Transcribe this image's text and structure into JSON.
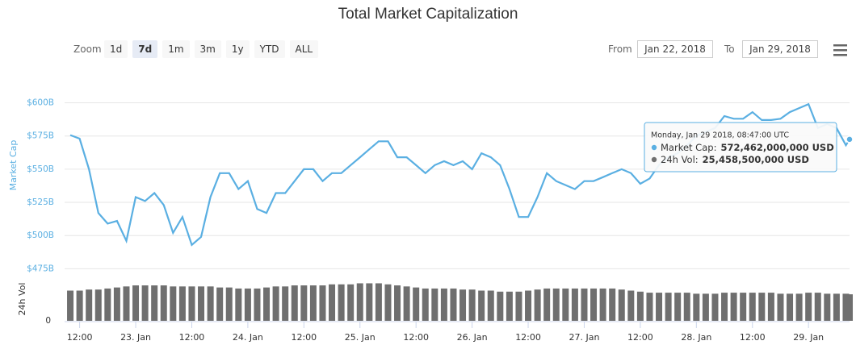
{
  "controls": {
    "zoom_label": "Zoom",
    "zoom_buttons": [
      "1d",
      "7d",
      "1m",
      "3m",
      "1y",
      "YTD",
      "ALL"
    ],
    "selected": "7d",
    "from_label": "From",
    "from_value": "Jan 22, 2018",
    "to_label": "To",
    "to_value": "Jan 29, 2018"
  },
  "chart_data": {
    "type": "line",
    "title": "Total Market Capitalization",
    "y_label": "Market Cap",
    "y2_label": "24h Vol",
    "x": [
      "2018-01-22T10:00",
      "2018-01-22T12:00",
      "2018-01-22T14:00",
      "2018-01-22T16:00",
      "2018-01-22T18:00",
      "2018-01-22T20:00",
      "2018-01-22T22:00",
      "2018-01-23T00:00",
      "2018-01-23T02:00",
      "2018-01-23T04:00",
      "2018-01-23T06:00",
      "2018-01-23T08:00",
      "2018-01-23T10:00",
      "2018-01-23T12:00",
      "2018-01-23T14:00",
      "2018-01-23T16:00",
      "2018-01-23T18:00",
      "2018-01-23T20:00",
      "2018-01-23T22:00",
      "2018-01-24T00:00",
      "2018-01-24T02:00",
      "2018-01-24T04:00",
      "2018-01-24T06:00",
      "2018-01-24T08:00",
      "2018-01-24T10:00",
      "2018-01-24T12:00",
      "2018-01-24T14:00",
      "2018-01-24T16:00",
      "2018-01-24T18:00",
      "2018-01-24T20:00",
      "2018-01-24T22:00",
      "2018-01-25T00:00",
      "2018-01-25T02:00",
      "2018-01-25T04:00",
      "2018-01-25T06:00",
      "2018-01-25T08:00",
      "2018-01-25T10:00",
      "2018-01-25T12:00",
      "2018-01-25T14:00",
      "2018-01-25T16:00",
      "2018-01-25T18:00",
      "2018-01-25T20:00",
      "2018-01-25T22:00",
      "2018-01-26T00:00",
      "2018-01-26T02:00",
      "2018-01-26T04:00",
      "2018-01-26T06:00",
      "2018-01-26T08:00",
      "2018-01-26T10:00",
      "2018-01-26T12:00",
      "2018-01-26T14:00",
      "2018-01-26T16:00",
      "2018-01-26T18:00",
      "2018-01-26T20:00",
      "2018-01-26T22:00",
      "2018-01-27T00:00",
      "2018-01-27T02:00",
      "2018-01-27T04:00",
      "2018-01-27T06:00",
      "2018-01-27T08:00",
      "2018-01-27T10:00",
      "2018-01-27T12:00",
      "2018-01-27T14:00",
      "2018-01-27T16:00",
      "2018-01-27T18:00",
      "2018-01-27T20:00",
      "2018-01-27T22:00",
      "2018-01-28T00:00",
      "2018-01-28T02:00",
      "2018-01-28T04:00",
      "2018-01-28T06:00",
      "2018-01-28T08:00",
      "2018-01-28T10:00",
      "2018-01-28T12:00",
      "2018-01-28T14:00",
      "2018-01-28T16:00",
      "2018-01-28T18:00",
      "2018-01-28T20:00",
      "2018-01-28T22:00",
      "2018-01-29T00:00",
      "2018-01-29T02:00",
      "2018-01-29T04:00",
      "2018-01-29T06:00",
      "2018-01-29T08:00",
      "2018-01-29T08:47"
    ],
    "series": [
      {
        "name": "Market Cap",
        "color": "#5aafe2",
        "values": [
          575.7,
          573,
          550,
          517,
          509,
          511,
          496,
          529,
          526,
          532,
          523,
          502,
          514,
          493,
          499,
          529,
          547,
          547,
          535,
          541,
          520,
          517,
          532,
          532,
          541,
          550,
          550,
          541,
          547,
          547,
          553,
          559,
          565,
          571,
          571,
          559,
          559,
          553,
          547,
          553,
          556,
          553,
          556,
          550,
          562,
          559,
          553,
          535,
          514,
          514,
          529,
          547,
          541,
          538,
          535,
          541,
          541,
          544,
          547,
          550,
          547,
          539,
          543,
          553,
          559,
          562,
          568,
          575,
          578,
          581,
          590,
          588,
          588,
          593,
          587,
          587,
          588,
          593,
          596,
          599,
          581,
          584,
          581,
          568,
          572.462
        ]
      },
      {
        "name": "24h Vol",
        "color": "#6f6f6f",
        "axis": "y2",
        "values": [
          29,
          29,
          30,
          30,
          31,
          32,
          33,
          34,
          34,
          34,
          34,
          33,
          33,
          33,
          33,
          33,
          32,
          32,
          31,
          31,
          31,
          32,
          33,
          33,
          34,
          34,
          34,
          34,
          35,
          35,
          35,
          36,
          36,
          36,
          35,
          34,
          33,
          32,
          31,
          31,
          31,
          31,
          30,
          30,
          29,
          29,
          28,
          28,
          28,
          29,
          30,
          31,
          31,
          31,
          31,
          31,
          31,
          31,
          31,
          30,
          29,
          28,
          27,
          27,
          27,
          27,
          27,
          26,
          26,
          26,
          27,
          27,
          27,
          27,
          27,
          27,
          26,
          26,
          26,
          27,
          27,
          26,
          26,
          26,
          25.4585
        ]
      }
    ],
    "xlim": [
      "2018-01-22T08:47",
      "2018-01-29T08:47"
    ],
    "xticks": [
      {
        "value": "2018-01-22T12:00",
        "label": "12:00"
      },
      {
        "value": "2018-01-23T00:00",
        "label": "23. Jan"
      },
      {
        "value": "2018-01-23T12:00",
        "label": "12:00"
      },
      {
        "value": "2018-01-24T00:00",
        "label": "24. Jan"
      },
      {
        "value": "2018-01-24T12:00",
        "label": "12:00"
      },
      {
        "value": "2018-01-25T00:00",
        "label": "25. Jan"
      },
      {
        "value": "2018-01-25T12:00",
        "label": "12:00"
      },
      {
        "value": "2018-01-26T00:00",
        "label": "26. Jan"
      },
      {
        "value": "2018-01-26T12:00",
        "label": "12:00"
      },
      {
        "value": "2018-01-27T00:00",
        "label": "27. Jan"
      },
      {
        "value": "2018-01-27T12:00",
        "label": "12:00"
      },
      {
        "value": "2018-01-28T00:00",
        "label": "28. Jan"
      },
      {
        "value": "2018-01-28T12:00",
        "label": "12:00"
      },
      {
        "value": "2018-01-29T00:00",
        "label": "29. Jan"
      }
    ],
    "ylim": [
      471,
      624
    ],
    "yticks": [
      {
        "value": 475,
        "label": "$475B"
      },
      {
        "value": 500,
        "label": "$500B"
      },
      {
        "value": 525,
        "label": "$525B"
      },
      {
        "value": 550,
        "label": "$550B"
      },
      {
        "value": 575,
        "label": "$575B"
      },
      {
        "value": 600,
        "label": "$600B"
      }
    ],
    "y2lim": [
      0,
      41
    ],
    "y2ticks": [
      0
    ],
    "grid": true,
    "tooltip": {
      "date": "Monday, Jan 29 2018, 08:47:00 UTC",
      "rows": [
        {
          "label": "Market Cap:",
          "value": "572,462,000,000 USD"
        },
        {
          "label": "24h Vol:",
          "value": "25,458,500,000 USD"
        }
      ]
    }
  }
}
